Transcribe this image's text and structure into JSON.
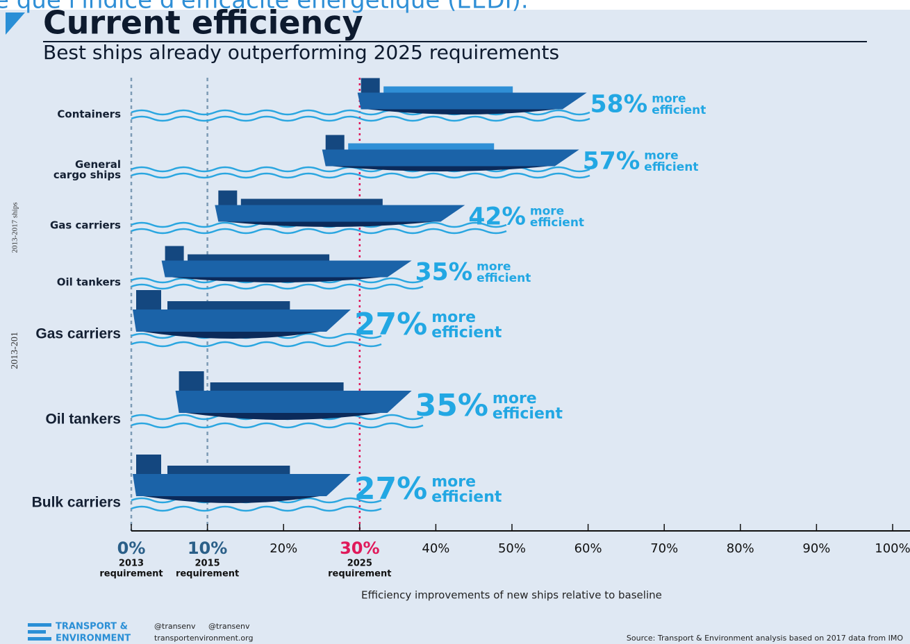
{
  "chart_data": {
    "type": "bar",
    "header_fragment": "e que l'indice d'efficacité énergétique (EEDI).",
    "title": "Current efficiency",
    "subtitle": "Best ships already outperforming 2025 requirements",
    "side_label": "2013-2017 ships",
    "side_label_cut": "2013-201",
    "categories": [
      "Containers",
      "General cargo ships",
      "Gas carriers",
      "Oil tankers",
      "Gas carriers",
      "Oil tankers",
      "Bulk carriers"
    ],
    "values": [
      58,
      57,
      42,
      35,
      27,
      35,
      27
    ],
    "value_labels": [
      "58%",
      "57%",
      "42%",
      "35%",
      "27%",
      "35%",
      "27%"
    ],
    "value_suffix": [
      "more",
      "efficient"
    ],
    "color": "#1b63a8",
    "xlim": [
      0,
      100
    ],
    "xticks": [
      {
        "value": 0,
        "label": "0%"
      },
      {
        "value": 10,
        "label": "10%"
      },
      {
        "value": 20,
        "label": "20%"
      },
      {
        "value": 30,
        "label": "30%"
      },
      {
        "value": 40,
        "label": "40%"
      },
      {
        "value": 50,
        "label": "50%"
      },
      {
        "value": 60,
        "label": "60%"
      },
      {
        "value": 70,
        "label": "70%"
      },
      {
        "value": 80,
        "label": "80%"
      },
      {
        "value": 90,
        "label": "90%"
      },
      {
        "value": 100,
        "label": "100%"
      }
    ],
    "reference_lines": [
      {
        "value": 0,
        "year": "2013",
        "label": "requirement",
        "color": "#7d9bb5"
      },
      {
        "value": 10,
        "year": "2015",
        "label": "requirement",
        "color": "#7d9bb5"
      },
      {
        "value": 30,
        "year": "2025",
        "label": "requirement",
        "color": "#e0195a"
      }
    ],
    "xlabel": "Efficiency improvements of new ships relative to baseline",
    "footer": {
      "org_line1": "TRANSPORT &",
      "org_line2": "ENVIRONMENT",
      "twitter": "@transenv",
      "facebook": "@transenv",
      "website": "transportenvironment.org",
      "source": "Source: Transport & Environment analysis based on 2017 data from IMO"
    }
  }
}
